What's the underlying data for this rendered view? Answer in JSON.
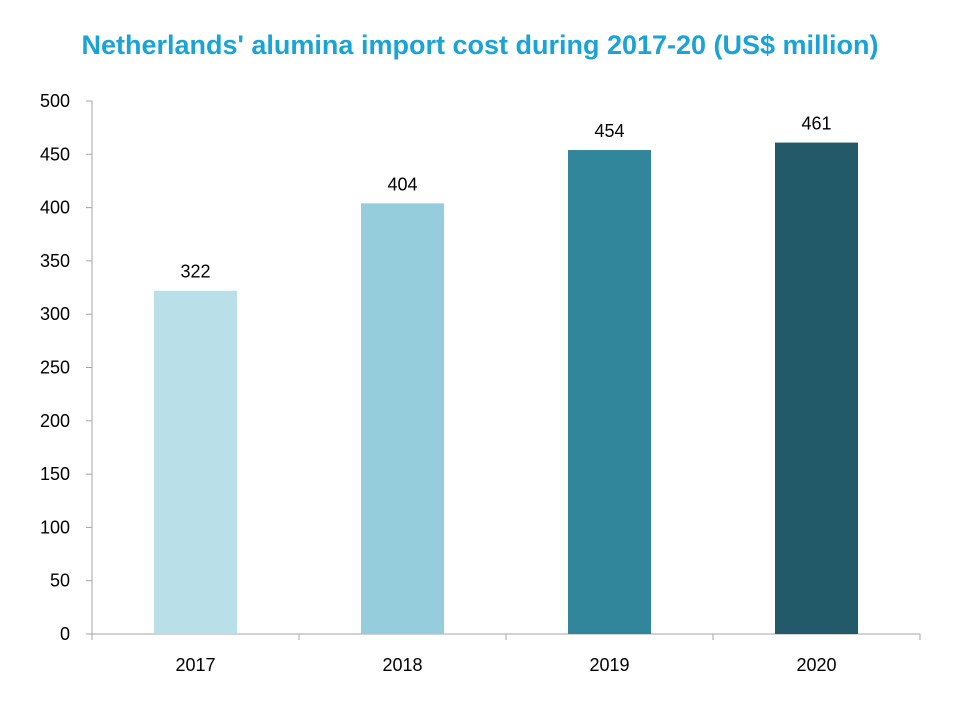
{
  "chart_data": {
    "type": "bar",
    "title": "Netherlands' alumina import cost during 2017-20 (US$ million)",
    "categories": [
      "2017",
      "2018",
      "2019",
      "2020"
    ],
    "values": [
      322,
      404,
      454,
      461
    ],
    "data_labels": [
      "322",
      "404",
      "454",
      "461"
    ],
    "bar_colors": [
      "#b9dfe9",
      "#95cddd",
      "#32869c",
      "#225a69"
    ],
    "ylim": [
      0,
      500
    ],
    "yticks": [
      "0",
      "50",
      "100",
      "150",
      "200",
      "250",
      "300",
      "350",
      "400",
      "450",
      "500"
    ],
    "xlabel": "",
    "ylabel": "",
    "grid": false,
    "legend": "none",
    "axis_color": "#a6a6a6",
    "title_color": "#1aa3d6"
  }
}
